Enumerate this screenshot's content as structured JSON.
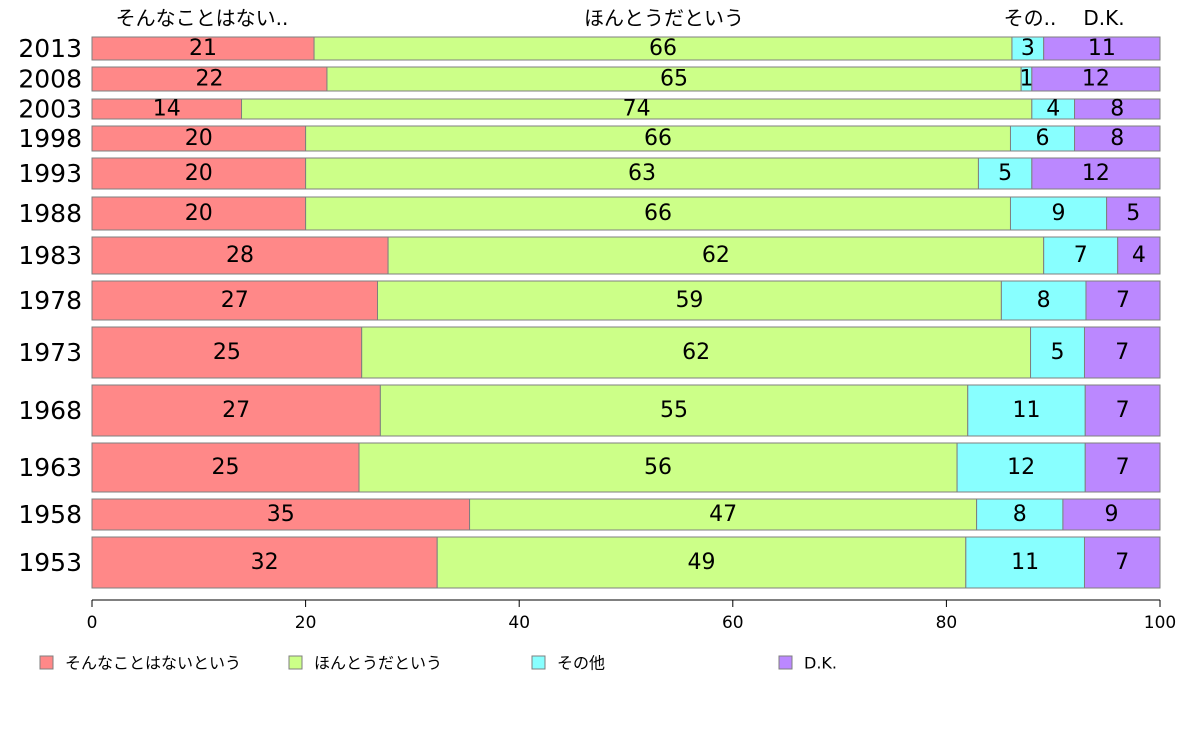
{
  "chart_data": {
    "type": "bar",
    "orientation": "horizontal",
    "stacked": true,
    "categories": [
      "2013",
      "2008",
      "2003",
      "1998",
      "1993",
      "1988",
      "1983",
      "1978",
      "1973",
      "1968",
      "1963",
      "1958",
      "1953"
    ],
    "series": [
      {
        "name": "そんなことはないという",
        "color": "#ff8888",
        "values": [
          21,
          22,
          14,
          20,
          20,
          20,
          28,
          27,
          25,
          27,
          25,
          35,
          32
        ]
      },
      {
        "name": "ほんとうだという",
        "color": "#ccff88",
        "values": [
          66,
          65,
          74,
          66,
          63,
          66,
          62,
          59,
          62,
          55,
          56,
          47,
          49
        ]
      },
      {
        "name": "その他",
        "color": "#88ffff",
        "values": [
          3,
          1,
          4,
          6,
          5,
          9,
          7,
          8,
          5,
          11,
          12,
          8,
          11
        ]
      },
      {
        "name": "D.K.",
        "color": "#bb88ff",
        "values": [
          11,
          12,
          8,
          8,
          12,
          5,
          4,
          7,
          7,
          7,
          7,
          9,
          7
        ]
      }
    ],
    "top_labels": [
      "そんなことはない..",
      "ほんとうだという",
      "その..",
      "D.K."
    ],
    "xlim": [
      0,
      100
    ],
    "xticks": [
      0,
      20,
      40,
      60,
      80,
      100
    ],
    "grid": false,
    "legend": "bottom"
  }
}
